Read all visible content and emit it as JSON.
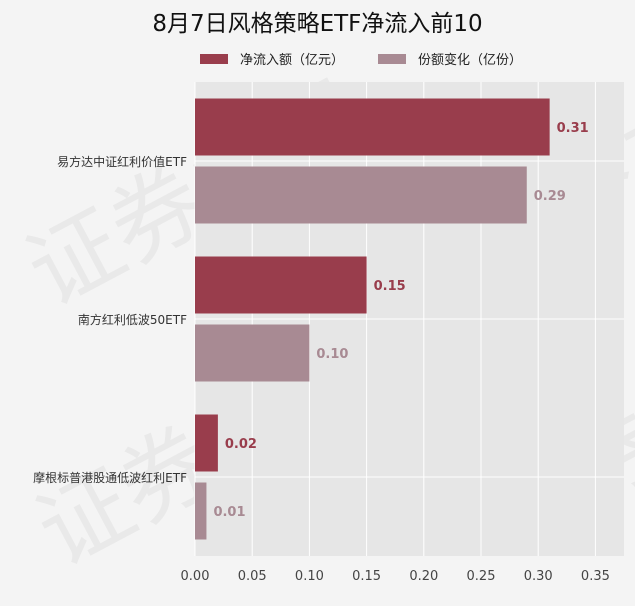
{
  "title": "8月7日风格策略ETF净流入前10",
  "watermark_text": "证券之星",
  "colors": {
    "net_inflow": "#993d4c",
    "share_change": "#a88a93",
    "plot_bg": "#e6e6e6",
    "grid": "#ffffff"
  },
  "chart_data": {
    "type": "bar",
    "orientation": "horizontal",
    "title": "8月7日风格策略ETF净流入前10",
    "categories": [
      "易方达中证红利价值ETF",
      "南方红利低波50ETF",
      "摩根标普港股通低波红利ETF"
    ],
    "series": [
      {
        "name": "净流入额（亿元）",
        "values": [
          0.31,
          0.15,
          0.02
        ],
        "labels": [
          "0.31",
          "0.15",
          "0.02"
        ]
      },
      {
        "name": "份额变化（亿份）",
        "values": [
          0.29,
          0.1,
          0.01
        ],
        "labels": [
          "0.29",
          "0.10",
          "0.01"
        ]
      }
    ],
    "xlim": [
      0,
      0.375
    ],
    "xticks": [
      0.0,
      0.05,
      0.1,
      0.15,
      0.2,
      0.25,
      0.3,
      0.35
    ],
    "xtick_labels": [
      "0.00",
      "0.05",
      "0.10",
      "0.15",
      "0.20",
      "0.25",
      "0.30",
      "0.35"
    ],
    "grid": true,
    "legend_position": "top"
  }
}
